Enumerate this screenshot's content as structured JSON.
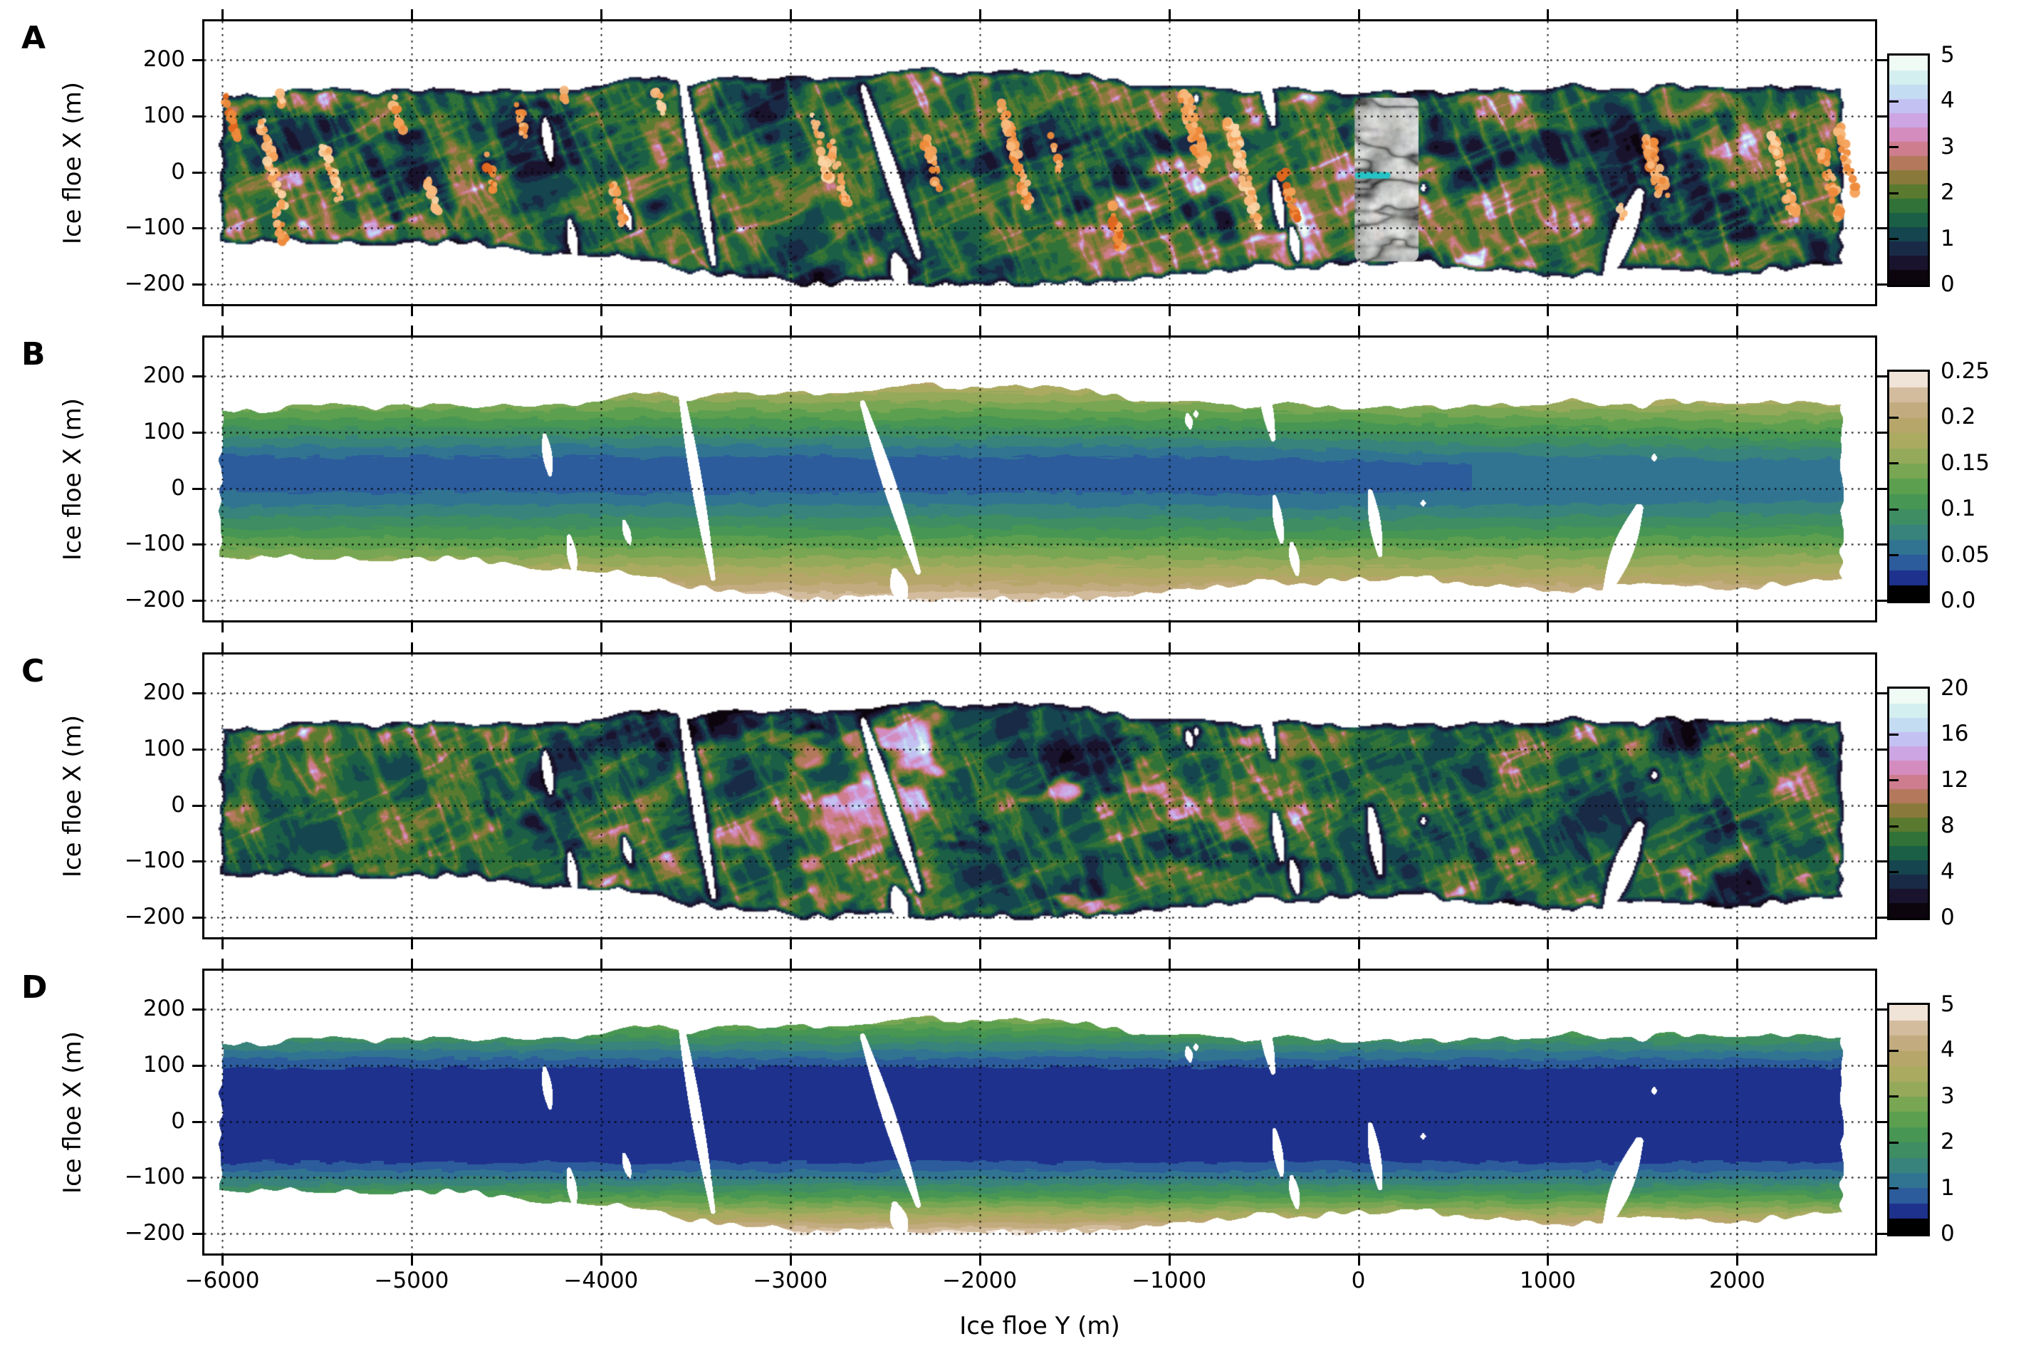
{
  "chart_data": {
    "type": "heatmap",
    "title": "",
    "xlabel": "Ice floe Y (m)",
    "ylabel": "Ice floe X (m)",
    "x_ticks": [
      -6000,
      -5000,
      -4000,
      -3000,
      -2000,
      -1000,
      0,
      1000,
      2000
    ],
    "x_tick_labels": [
      "−6000",
      "−5000",
      "−4000",
      "−3000",
      "−2000",
      "−1000",
      "0",
      "1000",
      "2000"
    ],
    "y_ticks": [
      200,
      100,
      0,
      -100,
      -200
    ],
    "y_tick_labels": [
      "200",
      "100",
      "0",
      "−100",
      "−200"
    ],
    "x_range": [
      -6094,
      2728
    ],
    "y_range": [
      -235,
      268
    ],
    "grid": "dotted",
    "panels": [
      {
        "letter": "A",
        "kind": "texture",
        "colormap": "cubehelix",
        "value_range": [
          0,
          5
        ],
        "levels": 16,
        "colorbar_tick_values": [
          0,
          1,
          2,
          3,
          4,
          5
        ],
        "colorbar_tick_labels": [
          "0",
          "1",
          "2",
          "3",
          "4",
          "5"
        ],
        "orange_marker_clusters": [
          [
            -5985,
            135,
            60,
            0.9
          ],
          [
            -5800,
            95,
            -65,
            1.1
          ],
          [
            -5725,
            -60,
            -125,
            0.9
          ],
          [
            -5710,
            148,
            124,
            0.6
          ],
          [
            -5460,
            50,
            -50,
            1.0
          ],
          [
            -5100,
            130,
            75,
            0.8
          ],
          [
            -4915,
            -10,
            -70,
            0.8
          ],
          [
            -4615,
            35,
            -35,
            0.7
          ],
          [
            -4445,
            120,
            60,
            0.7
          ],
          [
            -4200,
            145,
            130,
            0.5
          ],
          [
            -3935,
            -20,
            -95,
            0.8
          ],
          [
            -3710,
            148,
            100,
            0.6
          ],
          [
            -2880,
            100,
            -15,
            1.0
          ],
          [
            -2790,
            55,
            -60,
            0.9
          ],
          [
            -2285,
            60,
            -45,
            0.8
          ],
          [
            -1880,
            120,
            -60,
            1.2
          ],
          [
            -1620,
            65,
            5,
            0.7
          ],
          [
            -1320,
            -50,
            -140,
            1.0
          ],
          [
            -925,
            145,
            0,
            1.7
          ],
          [
            -675,
            85,
            -100,
            1.4
          ],
          [
            -400,
            5,
            -85,
            0.9
          ],
          [
            80,
            -70,
            -120,
            0.7
          ],
          [
            1530,
            60,
            -50,
            1.5
          ],
          [
            1380,
            -55,
            -85,
            0.6
          ],
          [
            2190,
            65,
            -80,
            1.1
          ],
          [
            2450,
            40,
            -90,
            1.1
          ],
          [
            2520,
            100,
            -40,
            0.8
          ]
        ],
        "inset_image": {
          "y_span_m": [
            -20,
            318
          ],
          "x_span_m": [
            -160,
            132
          ],
          "marker": {
            "x_m": -6,
            "y_from_m": -2,
            "y_to_m": 152
          }
        }
      },
      {
        "letter": "B",
        "kind": "contour",
        "colormap": "gist_earth",
        "value_range": [
          0,
          0.25
        ],
        "levels": 15,
        "colorbar_tick_values": [
          0,
          0.05,
          0.1,
          0.15,
          0.2,
          0.25
        ],
        "colorbar_tick_labels": [
          "0.0",
          "0.05",
          "0.1",
          "0.15",
          "0.2",
          "0.25"
        ],
        "field": {
          "center_x_m": 28,
          "base": 0.045,
          "base_drift": 0.012,
          "below": {
            "offset": 25,
            "scale_m": 200,
            "amp": 0.185,
            "pow": 1.2
          },
          "above": {
            "offset": 22,
            "scale_m": 140,
            "amp": 0.145,
            "pow": 1.1
          },
          "jitter_m": 12
        }
      },
      {
        "letter": "C",
        "kind": "texture",
        "colormap": "cubehelix",
        "value_range": [
          0,
          20
        ],
        "levels": 16,
        "colorbar_tick_values": [
          0,
          4,
          8,
          12,
          16,
          20
        ],
        "colorbar_tick_labels": [
          "0",
          "4",
          "8",
          "12",
          "16",
          "20"
        ],
        "pink_patch_region": {
          "y_center_m": -1900,
          "y_sigma_m": 1500,
          "strength": 7
        }
      },
      {
        "letter": "D",
        "kind": "contour",
        "colormap": "gist_earth",
        "value_range": [
          0,
          5
        ],
        "levels": 15,
        "colorbar_tick_values": [
          0,
          1,
          2,
          3,
          4,
          5
        ],
        "colorbar_tick_labels": [
          "0",
          "1",
          "2",
          "3",
          "4",
          "5"
        ],
        "field": {
          "center_x_m": 10,
          "base": 0.5,
          "base_drift": 0,
          "below": {
            "offset": 70,
            "scale_m": 140,
            "amp": 4.3,
            "pow": 1.35
          },
          "above": {
            "offset": 75,
            "scale_m": 105,
            "amp": 2.6,
            "pow": 1.2
          },
          "jitter_m": 10
        }
      }
    ],
    "floe": {
      "y_extent_m": [
        -6005,
        2552
      ],
      "top_edge_m": [
        [
          -6100,
          137
        ],
        [
          -5700,
          140
        ],
        [
          -5300,
          143
        ],
        [
          -4900,
          146
        ],
        [
          -4500,
          150
        ],
        [
          -4100,
          155
        ],
        [
          -3800,
          160
        ],
        [
          -3500,
          166
        ],
        [
          -3200,
          168
        ],
        [
          -2900,
          170
        ],
        [
          -2600,
          176
        ],
        [
          -2350,
          183
        ],
        [
          -2100,
          182
        ],
        [
          -1900,
          185
        ],
        [
          -1700,
          183
        ],
        [
          -1500,
          174
        ],
        [
          -1300,
          166
        ],
        [
          -1100,
          158
        ],
        [
          -900,
          152
        ],
        [
          -700,
          149
        ],
        [
          -500,
          150
        ],
        [
          -300,
          147
        ],
        [
          -100,
          146
        ],
        [
          100,
          147
        ],
        [
          400,
          150
        ],
        [
          700,
          149
        ],
        [
          1000,
          147
        ],
        [
          1300,
          151
        ],
        [
          1600,
          152
        ],
        [
          1900,
          148
        ],
        [
          2200,
          146
        ],
        [
          2450,
          149
        ],
        [
          2600,
          151
        ]
      ],
      "bottom_edge_m": [
        [
          -6100,
          -118
        ],
        [
          -5700,
          -122
        ],
        [
          -5300,
          -126
        ],
        [
          -4900,
          -130
        ],
        [
          -4500,
          -134
        ],
        [
          -4200,
          -140
        ],
        [
          -3900,
          -150
        ],
        [
          -3600,
          -166
        ],
        [
          -3300,
          -180
        ],
        [
          -3000,
          -190
        ],
        [
          -2700,
          -195
        ],
        [
          -2400,
          -199
        ],
        [
          -2100,
          -199
        ],
        [
          -1800,
          -197
        ],
        [
          -1500,
          -191
        ],
        [
          -1200,
          -186
        ],
        [
          -900,
          -179
        ],
        [
          -600,
          -170
        ],
        [
          -300,
          -163
        ],
        [
          0,
          -158
        ],
        [
          300,
          -161
        ],
        [
          600,
          -167
        ],
        [
          900,
          -171
        ],
        [
          1200,
          -176
        ],
        [
          1500,
          -178
        ],
        [
          1800,
          -174
        ],
        [
          2100,
          -170
        ],
        [
          2400,
          -168
        ],
        [
          2600,
          -166
        ]
      ],
      "cracks": [
        [
          -4300,
          95,
          25,
          8,
          5
        ],
        [
          -4170,
          -85,
          -150,
          8,
          5
        ],
        [
          -3590,
          195,
          -160,
          48,
          6
        ],
        [
          -2620,
          152,
          -148,
          78,
          7
        ],
        [
          -2450,
          -148,
          -202,
          12,
          9
        ],
        [
          -905,
          132,
          108,
          4,
          4
        ],
        [
          -3880,
          -58,
          -98,
          8,
          4
        ],
        [
          -520,
          206,
          88,
          18,
          6
        ],
        [
          -445,
          -15,
          -95,
          10,
          5
        ],
        [
          -355,
          -98,
          -152,
          8,
          5
        ],
        [
          60,
          -5,
          -118,
          14,
          6
        ],
        [
          1480,
          -35,
          -182,
          -45,
          11
        ],
        [
          1560,
          60,
          50,
          0,
          3
        ],
        [
          340,
          -22,
          -30,
          0,
          3
        ],
        [
          -860,
          137,
          128,
          0,
          3
        ]
      ]
    }
  },
  "colors": {
    "background": "#ffffff",
    "axis": "#000000",
    "orange_dot_shades": [
      "#fcd4a5",
      "#f9b97e",
      "#f4a158",
      "#ee8a3b",
      "#e2661f"
    ],
    "cyan_marker": "#25c3c7",
    "cubehelix": {
      "start": 0.5,
      "rotations": -1.5,
      "hue": 1.0,
      "gamma": 1.0
    },
    "earth_stops": [
      [
        0.0,
        "#000000"
      ],
      [
        0.034,
        "#000000"
      ],
      [
        0.075,
        "#141b80"
      ],
      [
        0.13,
        "#2a4c9c"
      ],
      [
        0.205,
        "#2e6d9c"
      ],
      [
        0.29,
        "#37827f"
      ],
      [
        0.37,
        "#3f8e62"
      ],
      [
        0.46,
        "#4b9a4d"
      ],
      [
        0.575,
        "#7ba753"
      ],
      [
        0.675,
        "#a6ab5e"
      ],
      [
        0.775,
        "#b7a56a"
      ],
      [
        0.855,
        "#c6ad85"
      ],
      [
        0.92,
        "#d9c3a8"
      ],
      [
        0.962,
        "#eedfd3"
      ],
      [
        1.0,
        "#ffffff"
      ]
    ]
  }
}
